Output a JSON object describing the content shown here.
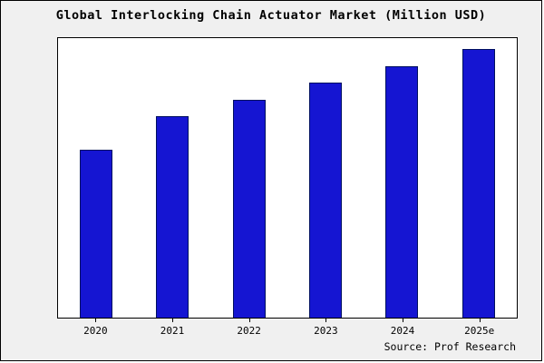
{
  "chart_data": {
    "type": "bar",
    "title": "Global Interlocking Chain Actuator Market (Million USD)",
    "categories": [
      "2020",
      "2021",
      "2022",
      "2023",
      "2024",
      "2025e"
    ],
    "values": [
      60,
      72,
      78,
      84,
      90,
      96
    ],
    "xlabel": "",
    "ylabel": "",
    "ylim": [
      0,
      100
    ],
    "grid": false,
    "legend": "none",
    "bar_fill": "#1515d2",
    "bar_edge": "#001060",
    "plot_background": "#ffffff",
    "figure_background": "#f0f0f0"
  },
  "source": {
    "label": "Source: Prof Research"
  }
}
